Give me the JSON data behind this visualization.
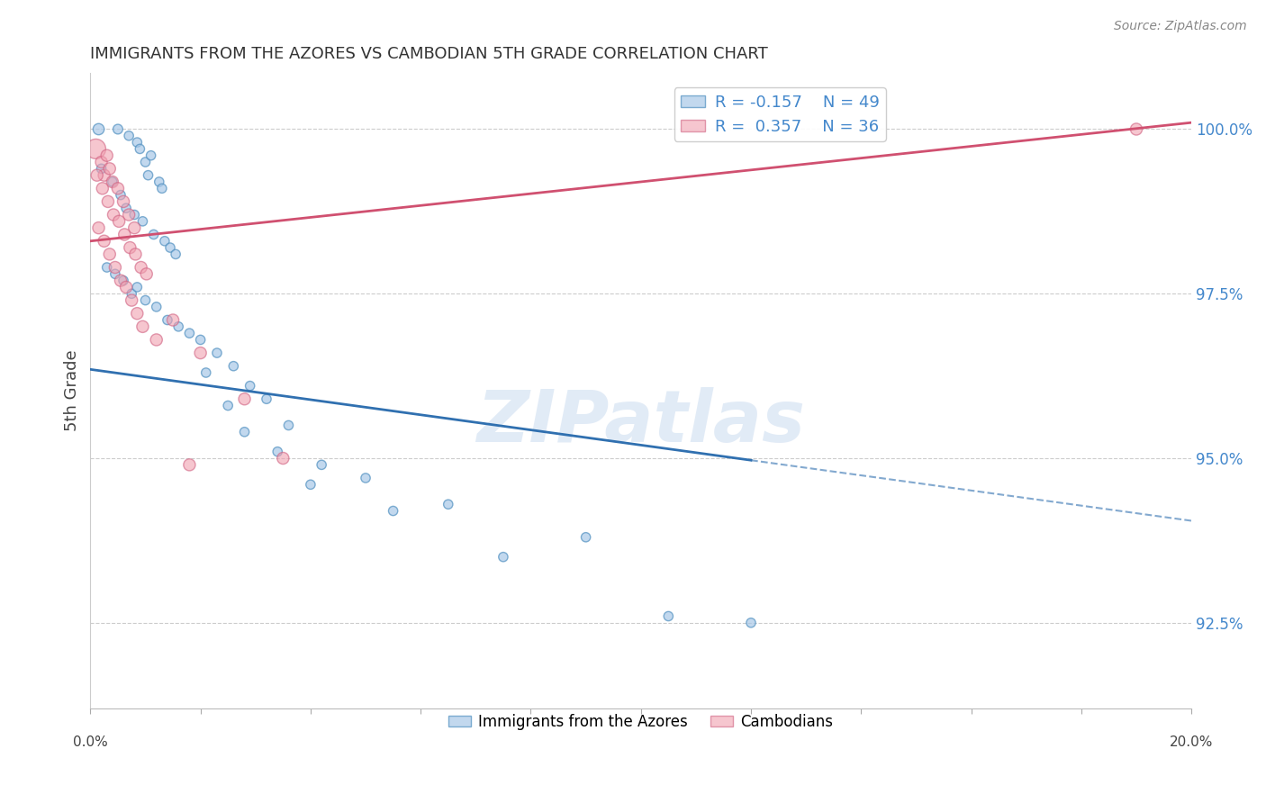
{
  "title": "IMMIGRANTS FROM THE AZORES VS CAMBODIAN 5TH GRADE CORRELATION CHART",
  "source": "Source: ZipAtlas.com",
  "ylabel": "5th Grade",
  "ytick_labels": [
    "92.5%",
    "95.0%",
    "97.5%",
    "100.0%"
  ],
  "ytick_values": [
    92.5,
    95.0,
    97.5,
    100.0
  ],
  "xmin": 0.0,
  "xmax": 20.0,
  "ymin": 91.2,
  "ymax": 100.85,
  "legend_r_blue": "R = -0.157",
  "legend_n_blue": "N = 49",
  "legend_r_pink": "R =  0.357",
  "legend_n_pink": "N = 36",
  "blue_fill": "#a8c8e8",
  "blue_edge": "#5090c0",
  "pink_fill": "#f0a0b0",
  "pink_edge": "#d06080",
  "blue_line_color": "#3070b0",
  "pink_line_color": "#d05070",
  "watermark": "ZIPatlas",
  "blue_line_x0": 0.0,
  "blue_line_y0": 96.35,
  "blue_line_x1": 20.0,
  "blue_line_y1": 94.05,
  "blue_solid_end": 12.0,
  "pink_line_x0": 0.0,
  "pink_line_y0": 98.3,
  "pink_line_x1": 20.0,
  "pink_line_y1": 100.1,
  "blue_x": [
    0.15,
    0.5,
    0.7,
    0.85,
    0.9,
    1.0,
    1.05,
    1.1,
    1.25,
    1.3,
    0.2,
    0.4,
    0.55,
    0.65,
    0.8,
    0.95,
    1.15,
    1.35,
    1.45,
    1.55,
    0.3,
    0.45,
    0.6,
    0.75,
    0.85,
    1.0,
    1.2,
    1.4,
    1.6,
    1.8,
    2.0,
    2.3,
    2.6,
    2.9,
    3.2,
    3.6,
    4.2,
    5.0,
    6.5,
    9.0,
    2.1,
    2.5,
    2.8,
    3.4,
    4.0,
    5.5,
    7.5,
    10.5,
    12.0
  ],
  "blue_y": [
    100.0,
    100.0,
    99.9,
    99.8,
    99.7,
    99.5,
    99.3,
    99.6,
    99.2,
    99.1,
    99.4,
    99.2,
    99.0,
    98.8,
    98.7,
    98.6,
    98.4,
    98.3,
    98.2,
    98.1,
    97.9,
    97.8,
    97.7,
    97.5,
    97.6,
    97.4,
    97.3,
    97.1,
    97.0,
    96.9,
    96.8,
    96.6,
    96.4,
    96.1,
    95.9,
    95.5,
    94.9,
    94.7,
    94.3,
    93.8,
    96.3,
    95.8,
    95.4,
    95.1,
    94.6,
    94.2,
    93.5,
    92.6,
    92.5
  ],
  "blue_sizes": [
    80,
    60,
    55,
    55,
    55,
    55,
    55,
    55,
    55,
    55,
    55,
    55,
    55,
    55,
    55,
    55,
    55,
    55,
    55,
    55,
    55,
    55,
    55,
    55,
    55,
    55,
    55,
    55,
    55,
    55,
    55,
    55,
    55,
    55,
    55,
    55,
    55,
    55,
    55,
    55,
    55,
    55,
    55,
    55,
    55,
    55,
    55,
    55,
    55
  ],
  "pink_x": [
    0.1,
    0.2,
    0.25,
    0.3,
    0.35,
    0.4,
    0.5,
    0.6,
    0.7,
    0.8,
    0.12,
    0.22,
    0.32,
    0.42,
    0.52,
    0.62,
    0.72,
    0.82,
    0.92,
    1.02,
    0.15,
    0.25,
    0.35,
    0.45,
    0.55,
    0.65,
    0.75,
    0.85,
    0.95,
    1.2,
    1.5,
    2.0,
    2.8,
    3.5,
    19.0,
    1.8
  ],
  "pink_y": [
    99.7,
    99.5,
    99.3,
    99.6,
    99.4,
    99.2,
    99.1,
    98.9,
    98.7,
    98.5,
    99.3,
    99.1,
    98.9,
    98.7,
    98.6,
    98.4,
    98.2,
    98.1,
    97.9,
    97.8,
    98.5,
    98.3,
    98.1,
    97.9,
    97.7,
    97.6,
    97.4,
    97.2,
    97.0,
    96.8,
    97.1,
    96.6,
    95.9,
    95.0,
    100.0,
    94.9
  ],
  "pink_sizes": [
    250,
    90,
    90,
    90,
    90,
    90,
    90,
    90,
    90,
    90,
    90,
    90,
    90,
    90,
    90,
    90,
    90,
    90,
    90,
    90,
    90,
    90,
    90,
    90,
    90,
    90,
    90,
    90,
    90,
    90,
    90,
    90,
    90,
    90,
    90,
    90
  ]
}
